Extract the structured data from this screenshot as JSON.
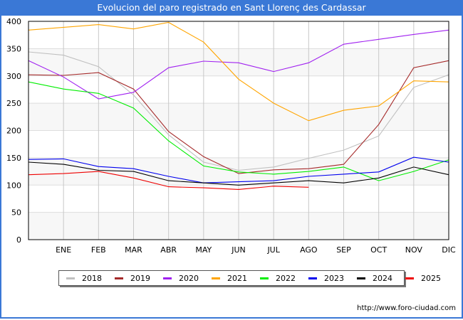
{
  "chart_data": {
    "type": "line",
    "title": "Evolucion del paro registrado en Sant Llorenç des Cardassar",
    "xlabel": "",
    "ylabel": "",
    "categories": [
      "",
      "ENE",
      "FEB",
      "MAR",
      "ABR",
      "MAY",
      "JUN",
      "JUL",
      "AGO",
      "SEP",
      "OCT",
      "NOV",
      "DIC"
    ],
    "ylim": [
      0,
      400
    ],
    "yticks": [
      0,
      50,
      100,
      150,
      200,
      250,
      300,
      350,
      400
    ],
    "grid": true,
    "legend_position": "bottom",
    "series": [
      {
        "name": "2018",
        "color": "#c0c0c0",
        "values": [
          344,
          338,
          317,
          265,
          192,
          142,
          127,
          133,
          149,
          164,
          190,
          279,
          302
        ]
      },
      {
        "name": "2019",
        "color": "#a52a2a",
        "values": [
          302,
          301,
          306,
          276,
          198,
          152,
          121,
          128,
          130,
          138,
          211,
          315,
          328
        ]
      },
      {
        "name": "2020",
        "color": "#a020f0",
        "values": [
          328,
          298,
          258,
          270,
          315,
          327,
          324,
          308,
          324,
          358,
          367,
          376,
          384
        ]
      },
      {
        "name": "2021",
        "color": "#ffa500",
        "values": [
          384,
          389,
          394,
          386,
          398,
          362,
          294,
          250,
          218,
          237,
          245,
          291,
          289
        ]
      },
      {
        "name": "2022",
        "color": "#00ee00",
        "values": [
          289,
          276,
          268,
          241,
          181,
          135,
          124,
          120,
          125,
          133,
          108,
          125,
          146
        ]
      },
      {
        "name": "2023",
        "color": "#0000ee",
        "values": [
          147,
          148,
          134,
          130,
          116,
          104,
          106,
          108,
          116,
          120,
          124,
          151,
          142
        ]
      },
      {
        "name": "2024",
        "color": "#000000",
        "values": [
          142,
          138,
          127,
          125,
          108,
          104,
          100,
          104,
          108,
          104,
          113,
          133,
          119
        ]
      },
      {
        "name": "2025",
        "color": "#ee0000",
        "values": [
          119,
          121,
          125,
          113,
          97,
          95,
          92,
          98,
          96
        ]
      }
    ]
  },
  "footer": {
    "url_text": "http://www.foro-ciudad.com"
  }
}
